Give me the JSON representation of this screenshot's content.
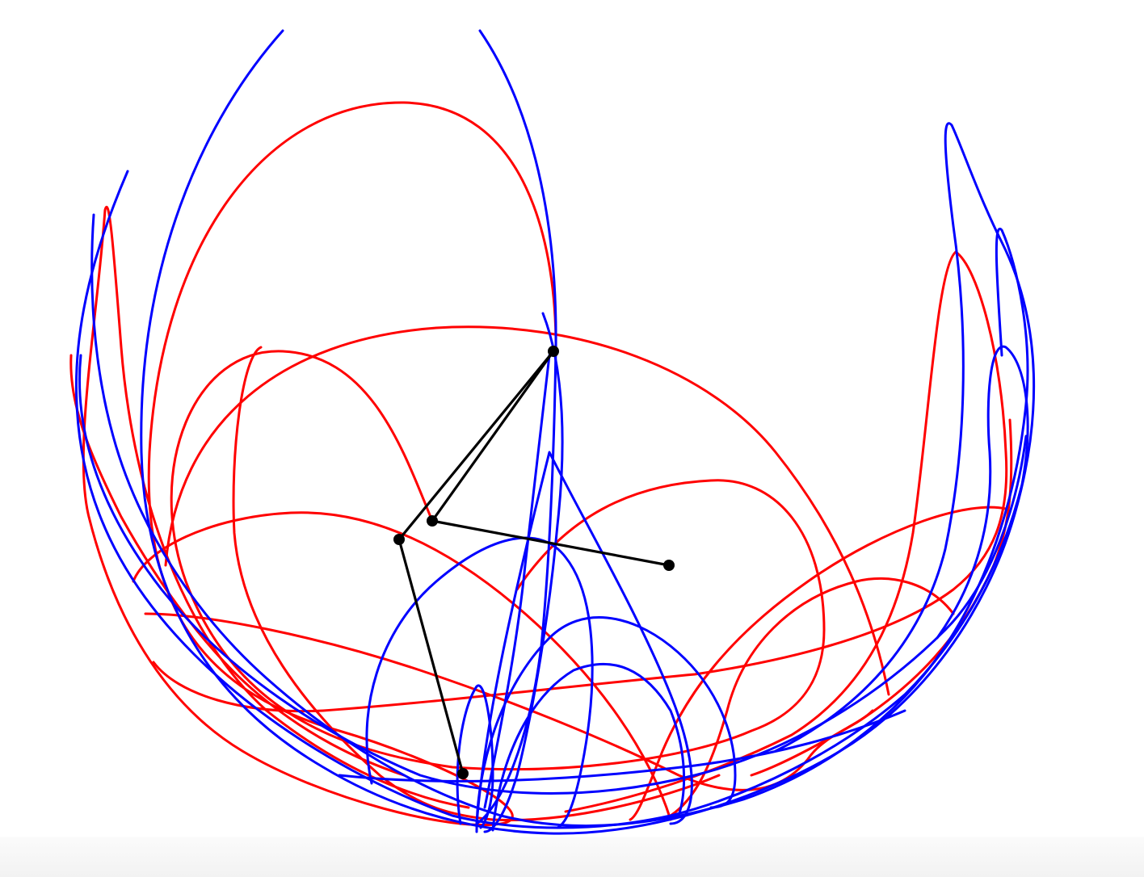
{
  "colors": {
    "background": "#ffffff",
    "trace_a": "#ff0000",
    "trace_b": "#0000ff",
    "rods": "#000000",
    "joints": "#000000",
    "bottom_bar": "#f4f4f4"
  },
  "pendulums": [
    {
      "id": "pendulum-a",
      "joint_names": [
        "pivot",
        "middle-joint",
        "end-bob"
      ],
      "trace_color_key": "trace_a"
    },
    {
      "id": "pendulum-b",
      "joint_names": [
        "pivot",
        "middle-joint",
        "end-bob"
      ],
      "trace_color_key": "trace_b"
    }
  ]
}
